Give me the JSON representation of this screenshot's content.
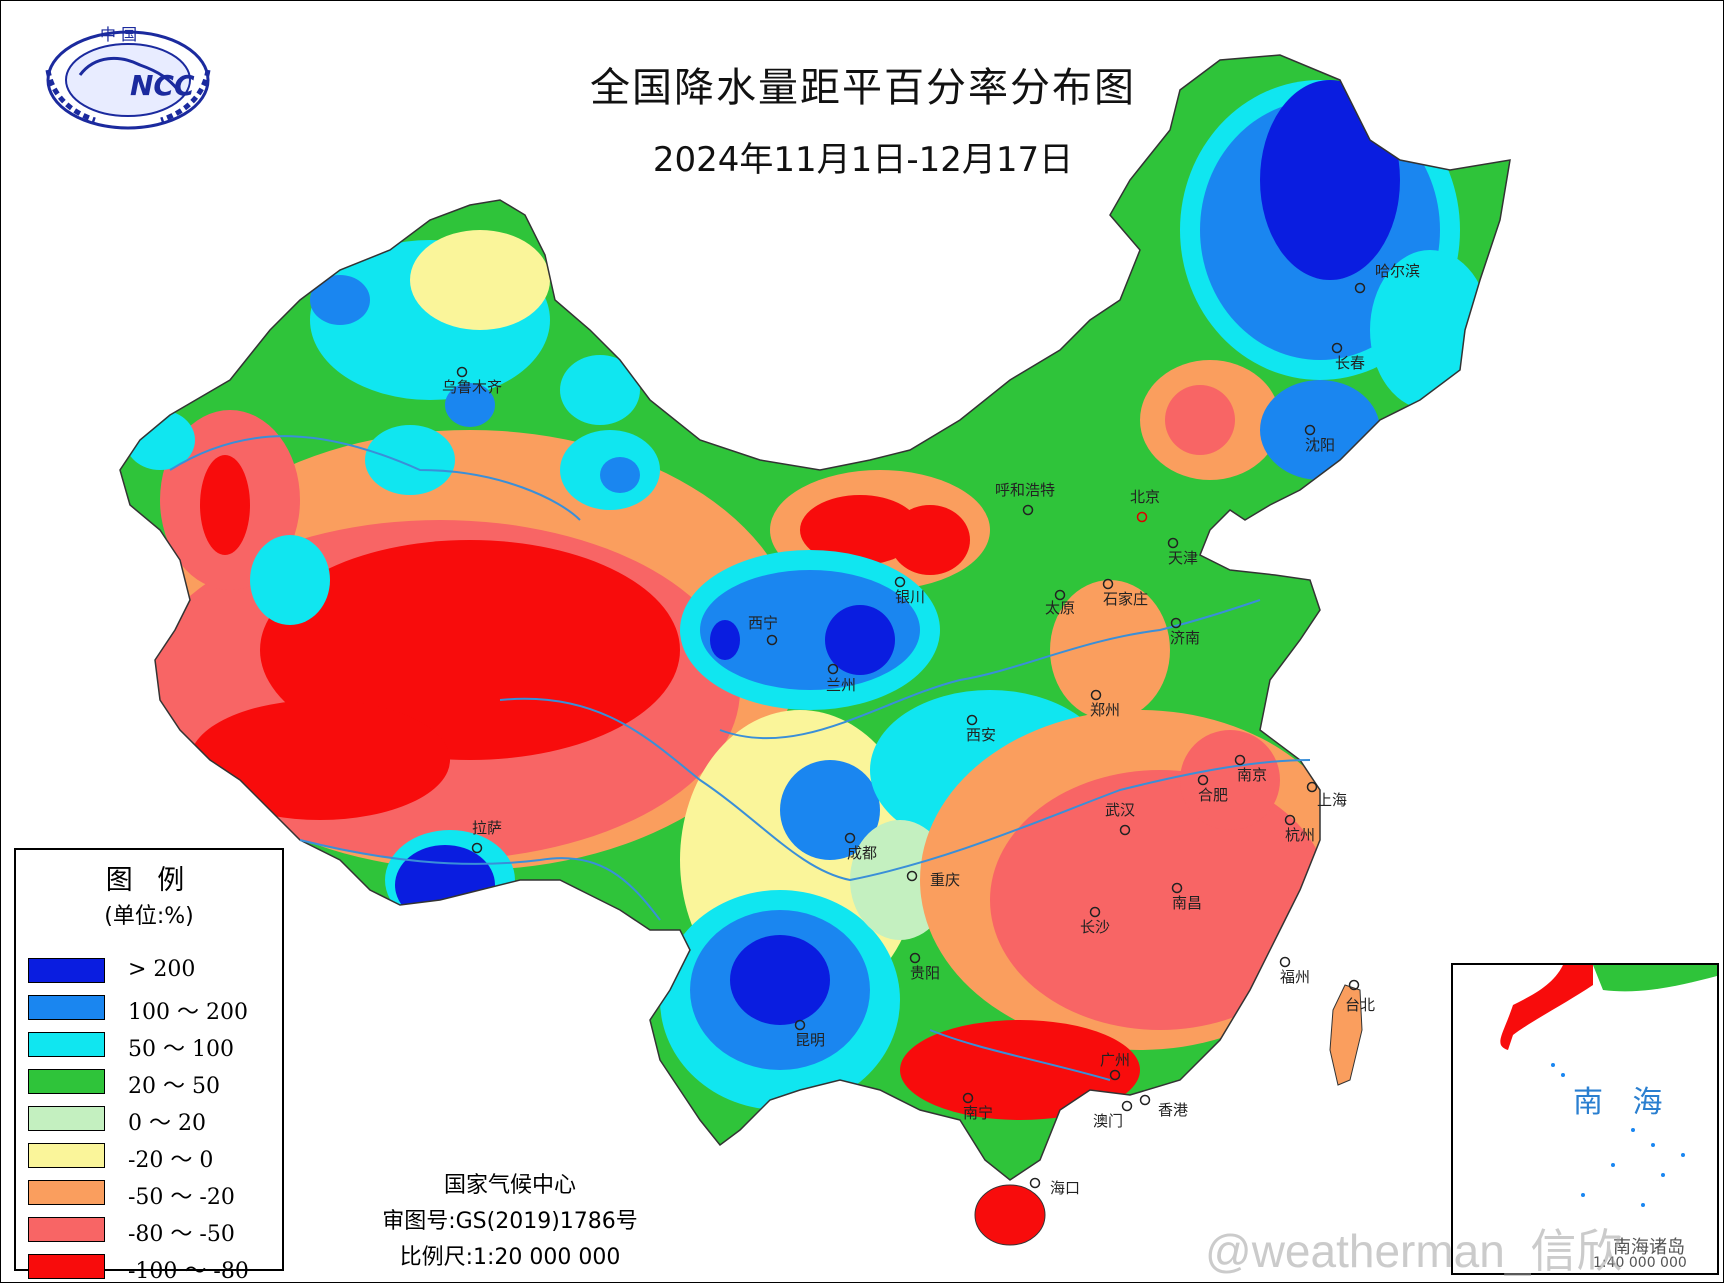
{
  "header": {
    "title": "全国降水量距平百分率分布图",
    "date_range": "2024年11月1日-12月17日"
  },
  "logo": {
    "text_top": "中 国",
    "text_main": "NCC"
  },
  "legend": {
    "title": "图 例",
    "unit": "(单位:%)",
    "items": [
      {
        "label": "> 200",
        "color": "#0a1de0"
      },
      {
        "label": "100 ～ 200",
        "color": "#1a86f0"
      },
      {
        "label": "50 ～ 100",
        "color": "#10e6f0"
      },
      {
        "label": "20 ～ 50",
        "color": "#2fc43a"
      },
      {
        "label": "0 ～ 20",
        "color": "#c4f0c0"
      },
      {
        "label": "-20 ～ 0",
        "color": "#faf59a"
      },
      {
        "label": "-50 ～ -20",
        "color": "#fa9e5e"
      },
      {
        "label": "-80 ～ -50",
        "color": "#f86565"
      },
      {
        "label": "-100 ～ -80",
        "color": "#f80c0c"
      }
    ]
  },
  "credit": {
    "org": "国家气候中心",
    "map_no": "审图号:GS(2019)1786号",
    "scale": "比例尺:1:20 000 000"
  },
  "cities": [
    {
      "name": "乌鲁木齐"
    },
    {
      "name": "哈尔滨"
    },
    {
      "name": "长春"
    },
    {
      "name": "沈阳"
    },
    {
      "name": "呼和浩特"
    },
    {
      "name": "北京"
    },
    {
      "name": "天津"
    },
    {
      "name": "银川"
    },
    {
      "name": "太原"
    },
    {
      "name": "石家庄"
    },
    {
      "name": "西宁"
    },
    {
      "name": "兰州"
    },
    {
      "name": "济南"
    },
    {
      "name": "郑州"
    },
    {
      "name": "西安"
    },
    {
      "name": "南京"
    },
    {
      "name": "合肥"
    },
    {
      "name": "上海"
    },
    {
      "name": "拉萨"
    },
    {
      "name": "武汉"
    },
    {
      "name": "杭州"
    },
    {
      "name": "成都"
    },
    {
      "name": "重庆"
    },
    {
      "name": "南昌"
    },
    {
      "name": "长沙"
    },
    {
      "name": "贵阳"
    },
    {
      "name": "福州"
    },
    {
      "name": "台北"
    },
    {
      "name": "昆明"
    },
    {
      "name": "广州"
    },
    {
      "name": "南宁"
    },
    {
      "name": "香港"
    },
    {
      "name": "澳门"
    },
    {
      "name": "海口"
    }
  ],
  "inset": {
    "sea_name": "南 海",
    "name": "南海诸岛",
    "scale": "1:40 000 000"
  },
  "watermark": "@weatherman_信欣"
}
